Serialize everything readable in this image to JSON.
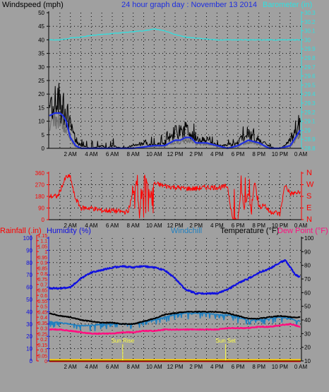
{
  "title": "24 hour graph day : November 13 2014",
  "colors": {
    "background": "#a0a0a0",
    "grid": "#000000",
    "wind_speed": "#000000",
    "wind_avg": "#1f2fe0",
    "wind_gust_shadow": "#707070",
    "barometer": "#30e0e0",
    "direction": "#ff0000",
    "humidity": "#1010e0",
    "windchill": "#2080c0",
    "temperature": "#000000",
    "dew_point": "#ff1080",
    "rainfall": "#ff0000",
    "rain_baseline": "#ffcc00",
    "sun_marker": "#ffff40"
  },
  "x_tick_labels": [
    "2 AM",
    "4 AM",
    "6 AM",
    "8 AM",
    "10 AM",
    "12 PM",
    "2 PM",
    "4 PM",
    "6 PM",
    "8 PM",
    "10 PM",
    "0 AM"
  ],
  "panel1": {
    "left_label": "Windspeed (mph)",
    "right_label": "Barometer (in)",
    "left_ticks": [
      "0",
      "5",
      "10",
      "15",
      "20",
      "25",
      "30",
      "35",
      "40",
      "45",
      "50"
    ],
    "right_ticks": [
      "28.8",
      "28.9",
      "29",
      "29.1",
      "29.2",
      "29.3",
      "29.4",
      "29.5",
      "29.6",
      "29.7",
      "29.8",
      "29.9",
      "30",
      "30.1",
      "30.2",
      "30.3"
    ]
  },
  "panel2": {
    "left_ticks": [
      "0",
      "90",
      "180",
      "270",
      "360"
    ],
    "right_ticks": [
      "N",
      "E",
      "S",
      "W",
      "N"
    ]
  },
  "panel3": {
    "rain_label": "Rainfall (.in)",
    "humidity_label": "Humidity (%)",
    "windchill_label": "Windchill",
    "temperature_label": "Temperature (°F)",
    "dewpoint_label": "Dew Point (°F)",
    "left_ticks_humidity": [
      "0",
      "10",
      "20",
      "30",
      "40",
      "50",
      "60",
      "70",
      "80",
      "90",
      "100"
    ],
    "left_ticks_rain": [
      "0",
      "0.05",
      "0.1",
      "0.15",
      "0.2",
      "0.25",
      "0.3",
      "0.35",
      "0.4",
      "0.45",
      "0.5",
      "0.55",
      "0.6",
      "0.65",
      "0.7",
      "0.75",
      "0.8",
      "0.85",
      "0.9",
      "0.95",
      "1",
      "1.05",
      "1.1",
      "1.15"
    ],
    "right_ticks_temp": [
      "10",
      "20",
      "30",
      "40",
      "50",
      "60",
      "70",
      "80",
      "90",
      "100"
    ],
    "sun_rise_label": "Sun Rise",
    "sun_set_label": "Sun Set"
  },
  "chart_data": [
    {
      "type": "line",
      "title": "24 hour graph day : November 13 2014",
      "xlabel": "",
      "ylabel": "Windspeed (mph)",
      "y2label": "Barometer (in)",
      "x_unit": "hours",
      "xlim": [
        0,
        24
      ],
      "ylim": [
        0,
        50
      ],
      "y2lim": [
        28.8,
        30.3
      ],
      "grid": true,
      "series": [
        {
          "name": "Windspeed (mph)",
          "axis": "left",
          "x": [
            0,
            0.5,
            1,
            1.3,
            1.6,
            2,
            2.5,
            3,
            4,
            5,
            5.5,
            6,
            7,
            8,
            9,
            10,
            11,
            11.5,
            12,
            12.5,
            13,
            13.5,
            14,
            14.5,
            15,
            15.5,
            16,
            17,
            18,
            18.5,
            19,
            20,
            21,
            21.5,
            22,
            22.5,
            23,
            23.5,
            24
          ],
          "y": [
            16,
            17,
            17,
            16,
            14,
            8,
            3,
            1,
            0,
            1,
            0,
            1,
            0,
            1,
            2,
            1,
            2,
            4,
            6,
            5,
            7,
            6,
            4,
            3,
            3,
            2,
            1,
            1,
            2,
            4,
            5,
            3,
            1,
            0,
            0,
            1,
            3,
            6,
            10
          ]
        },
        {
          "name": "Average windspeed",
          "axis": "left",
          "x": [
            0,
            0.5,
            1,
            1.3,
            1.6,
            2,
            2.5,
            3,
            4,
            6,
            8,
            10,
            11,
            12,
            12.5,
            13,
            13.5,
            14,
            15,
            16,
            17,
            18,
            18.5,
            19,
            20,
            21,
            22,
            23,
            23.5,
            24
          ],
          "y": [
            12,
            13,
            13,
            12,
            10,
            4,
            1,
            0,
            0,
            0,
            0,
            1,
            1,
            3,
            3,
            4,
            4,
            2,
            2,
            1,
            0,
            1,
            2,
            3,
            2,
            0,
            0,
            1,
            4,
            7
          ]
        },
        {
          "name": "Barometer (in)",
          "axis": "right",
          "x": [
            0,
            1,
            2,
            3,
            4,
            5,
            6,
            7,
            8,
            9,
            10,
            11,
            12,
            13,
            14,
            15,
            16,
            17,
            18,
            19,
            20,
            21,
            22,
            23,
            24
          ],
          "y": [
            30.0,
            30.0,
            30.02,
            30.03,
            30.05,
            30.06,
            30.07,
            30.08,
            30.09,
            30.1,
            30.12,
            30.1,
            30.06,
            30.03,
            30.02,
            30.01,
            30.0,
            30.0,
            30.0,
            30.0,
            30.0,
            30.0,
            30.0,
            30.0,
            30.0
          ]
        }
      ]
    },
    {
      "type": "scatter",
      "title": "",
      "ylabel": "",
      "y2label": "",
      "x_unit": "hours",
      "xlim": [
        0,
        24
      ],
      "ylim": [
        0,
        360
      ],
      "grid": true,
      "series": [
        {
          "name": "Wind direction (degrees)",
          "x": [
            0,
            0.8,
            1.2,
            1.6,
            2,
            2.4,
            3,
            4,
            5,
            6,
            7,
            7.5,
            8,
            8.3,
            8.6,
            9,
            9.3,
            9.6,
            10,
            11,
            12,
            13,
            14,
            15,
            16,
            16.5,
            17,
            17.5,
            18,
            18.3,
            18.6,
            19,
            19.3,
            19.6,
            20,
            20.5,
            21,
            21.5,
            22,
            22.5,
            23,
            24
          ],
          "y": [
            180,
            180,
            260,
            330,
            330,
            180,
            90,
            90,
            70,
            70,
            60,
            60,
            210,
            300,
            30,
            340,
            300,
            180,
            280,
            260,
            250,
            240,
            240,
            250,
            250,
            250,
            260,
            0,
            0,
            250,
            80,
            200,
            60,
            300,
            90,
            120,
            60,
            60,
            40,
            270,
            200,
            210
          ]
        }
      ]
    },
    {
      "type": "line",
      "title": "",
      "xlabel": "",
      "ylabel": "Humidity (%)",
      "y2label": "Temperature (°F)",
      "x_unit": "hours",
      "xlim": [
        0,
        24
      ],
      "ylim": [
        0,
        100
      ],
      "y2lim": [
        10,
        100
      ],
      "grid": true,
      "series": [
        {
          "name": "Humidity (%)",
          "axis": "left",
          "x": [
            0,
            1,
            2,
            3,
            4,
            5,
            6,
            7,
            8,
            9,
            10,
            11,
            12,
            13,
            14,
            15,
            16,
            17,
            18,
            19,
            20,
            21,
            22,
            22.5,
            23,
            23.5,
            24
          ],
          "y": [
            59,
            59,
            60,
            67,
            72,
            74,
            76,
            77,
            76,
            77,
            76,
            74,
            67,
            58,
            55,
            55,
            55,
            58,
            63,
            67,
            72,
            75,
            80,
            82,
            76,
            70,
            68
          ]
        },
        {
          "name": "Temperature (°F)",
          "axis": "right",
          "x": [
            0,
            1,
            2,
            3,
            4,
            5,
            6,
            7,
            8,
            9,
            10,
            11,
            12,
            13,
            14,
            15,
            16,
            17,
            18,
            19,
            20,
            21,
            22,
            23,
            24
          ],
          "y": [
            45,
            43,
            42,
            40,
            39,
            38,
            38,
            37,
            37,
            39,
            41,
            44,
            45,
            46,
            46,
            46,
            46,
            45,
            43,
            41,
            41,
            42,
            43,
            42,
            42
          ]
        },
        {
          "name": "Windchill",
          "axis": "right",
          "x": [
            0,
            1,
            2,
            3,
            4,
            5,
            6,
            7,
            8,
            9,
            10,
            11,
            12,
            13,
            14,
            15,
            16,
            17,
            18,
            19,
            20,
            21,
            22,
            23,
            24
          ],
          "y": [
            39,
            38,
            37,
            36,
            36,
            37,
            37,
            37,
            37,
            39,
            40,
            42,
            44,
            45,
            45,
            45,
            44,
            44,
            42,
            40,
            40,
            41,
            42,
            41,
            39
          ]
        },
        {
          "name": "Dew Point (°F)",
          "axis": "right",
          "x": [
            0,
            1,
            2,
            3,
            4,
            5,
            6,
            7,
            8,
            9,
            10,
            11,
            12,
            13,
            14,
            15,
            16,
            17,
            18,
            19,
            20,
            21,
            22,
            23,
            24
          ],
          "y": [
            33,
            33,
            32,
            31,
            30,
            30,
            30,
            31,
            31,
            32,
            32,
            33,
            33,
            33,
            33,
            33,
            33,
            34,
            34,
            34,
            35,
            35,
            36,
            37,
            35
          ]
        },
        {
          "name": "Rainfall (.in)",
          "axis": "rain",
          "x": [
            0,
            24
          ],
          "y": [
            0,
            0
          ]
        }
      ],
      "annotations": [
        {
          "label": "Sun Rise",
          "x": 7.0
        },
        {
          "label": "Sun Set",
          "x": 16.83
        }
      ]
    }
  ]
}
